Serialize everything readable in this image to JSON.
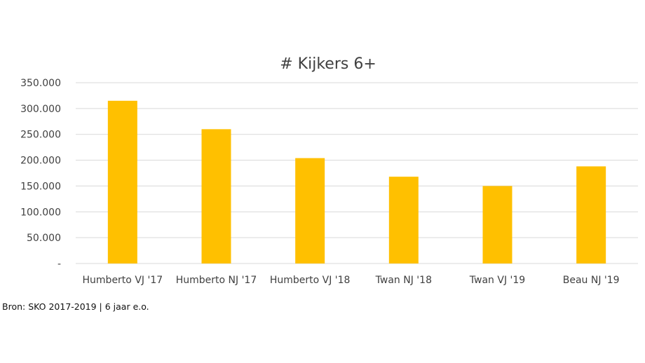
{
  "chart_data": {
    "type": "bar",
    "title": "# Kijkers 6+",
    "categories": [
      "Humberto VJ '17",
      "Humberto NJ '17",
      "Humberto VJ '18",
      "Twan NJ '18",
      "Twan VJ '19",
      "Beau NJ '19"
    ],
    "series": [
      {
        "values": [
          315000,
          260000,
          204000,
          168000,
          150000,
          188000
        ]
      }
    ],
    "ylim": [
      0,
      350000
    ],
    "yticks": [
      0,
      50000,
      100000,
      150000,
      200000,
      250000,
      300000,
      350000
    ],
    "ytick_labels": [
      "-",
      "50.000",
      "100.000",
      "150.000",
      "200.000",
      "250.000",
      "300.000",
      "350.000"
    ],
    "xlabel": "",
    "ylabel": "",
    "grid": true,
    "legend": "none",
    "bar_color": "#FFC000"
  },
  "footer": {
    "source": "Bron: SKO 2017-2019 | 6 jaar e.o."
  }
}
